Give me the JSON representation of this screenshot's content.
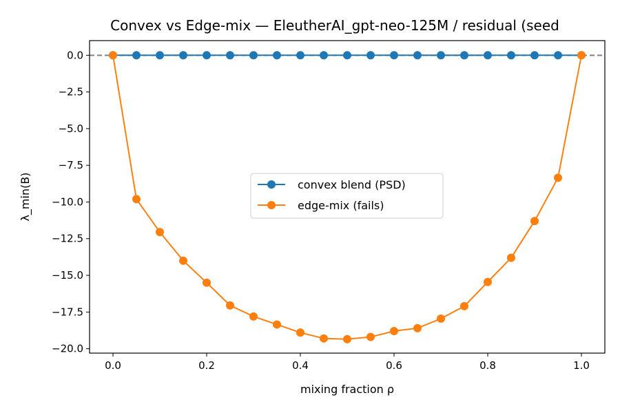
{
  "chart_data": {
    "type": "line",
    "title": "Convex vs Edge-mix — EleutherAI_gpt-neo-125M / residual (seed",
    "xlabel": "mixing fraction ρ",
    "ylabel": "λ_min(B)",
    "xlim": [
      -0.05,
      1.05
    ],
    "ylim": [
      -20.3,
      1.0
    ],
    "x_ticks": [
      0.0,
      0.2,
      0.4,
      0.6,
      0.8,
      1.0
    ],
    "x_tick_labels": [
      "0.0",
      "0.2",
      "0.4",
      "0.6",
      "0.8",
      "1.0"
    ],
    "y_ticks": [
      0.0,
      -2.5,
      -5.0,
      -7.5,
      -10.0,
      -12.5,
      -15.0,
      -17.5,
      -20.0
    ],
    "y_tick_labels": [
      "0.0",
      "−2.5",
      "−5.0",
      "−7.5",
      "−10.0",
      "−12.5",
      "−15.0",
      "−17.5",
      "−20.0"
    ],
    "reference_line": {
      "y": 0.0,
      "style": "dashed",
      "color": "#808080"
    },
    "legend_position": "center",
    "grid": false,
    "x": [
      0.0,
      0.05,
      0.1,
      0.15,
      0.2,
      0.25,
      0.3,
      0.35,
      0.4,
      0.45,
      0.5,
      0.55,
      0.6,
      0.65,
      0.7,
      0.75,
      0.8,
      0.85,
      0.9,
      0.95,
      1.0
    ],
    "series": [
      {
        "name": "convex blend (PSD)",
        "color": "#1f77b4",
        "values": [
          0.0,
          0.0,
          0.0,
          0.0,
          0.0,
          0.0,
          0.0,
          0.0,
          0.0,
          0.0,
          0.0,
          0.0,
          0.0,
          0.0,
          0.0,
          0.0,
          0.0,
          0.0,
          0.0,
          0.0,
          0.0
        ]
      },
      {
        "name": "edge-mix (fails)",
        "color": "#ff7f0e",
        "values": [
          0.0,
          -9.8,
          -12.05,
          -14.0,
          -15.5,
          -17.05,
          -17.8,
          -18.35,
          -18.9,
          -19.3,
          -19.35,
          -19.2,
          -18.8,
          -18.6,
          -17.95,
          -17.1,
          -15.45,
          -13.8,
          -11.3,
          -8.35,
          0.0
        ]
      }
    ]
  }
}
